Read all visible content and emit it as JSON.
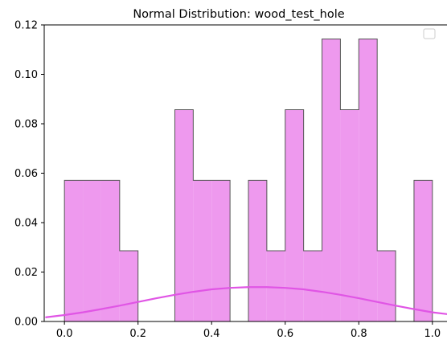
{
  "chart_data": {
    "type": "histogram",
    "title": "Normal Distribution: wood_test_hole",
    "xlabel": "",
    "ylabel": "",
    "xlim": [
      -0.055,
      1.055
    ],
    "ylim": [
      0,
      0.12
    ],
    "x_ticks": [
      0.0,
      0.2,
      0.4,
      0.6,
      0.8,
      1.0
    ],
    "x_tick_labels": [
      "0.0",
      "0.2",
      "0.4",
      "0.6",
      "0.8",
      "1.0"
    ],
    "y_ticks": [
      0.0,
      0.02,
      0.04,
      0.06,
      0.08,
      0.1,
      0.12
    ],
    "y_tick_labels": [
      "0.00",
      "0.02",
      "0.04",
      "0.06",
      "0.08",
      "0.10",
      "0.12"
    ],
    "grid": false,
    "legend": {
      "placement": "upper-right",
      "entries": []
    },
    "histogram": {
      "bin_edges": [
        0.0,
        0.05,
        0.1,
        0.15,
        0.2,
        0.25,
        0.3,
        0.35,
        0.4,
        0.45,
        0.5,
        0.55,
        0.6,
        0.65,
        0.7,
        0.75,
        0.8,
        0.85,
        0.9,
        0.95,
        1.0
      ],
      "values": [
        0.0571,
        0.0571,
        0.0571,
        0.0286,
        0.0,
        0.0,
        0.0857,
        0.0571,
        0.0571,
        0.0,
        0.0571,
        0.0286,
        0.0857,
        0.0286,
        0.1143,
        0.0857,
        0.1143,
        0.0286,
        0.0,
        0.0571
      ],
      "fill_color": "#ee99ee",
      "edge_color": "#555555"
    },
    "curve": {
      "type": "normal-pdf",
      "color": "#e055e5",
      "x": [
        -0.05,
        0.0,
        0.05,
        0.1,
        0.15,
        0.2,
        0.25,
        0.3,
        0.35,
        0.4,
        0.45,
        0.5,
        0.55,
        0.6,
        0.65,
        0.7,
        0.75,
        0.8,
        0.85,
        0.9,
        0.95,
        1.0,
        1.05
      ],
      "y": [
        0.0017,
        0.0026,
        0.0037,
        0.005,
        0.0064,
        0.0079,
        0.0094,
        0.0108,
        0.012,
        0.013,
        0.0136,
        0.0139,
        0.0139,
        0.0136,
        0.013,
        0.012,
        0.0108,
        0.0094,
        0.0079,
        0.0064,
        0.005,
        0.0037,
        0.0028
      ]
    }
  }
}
